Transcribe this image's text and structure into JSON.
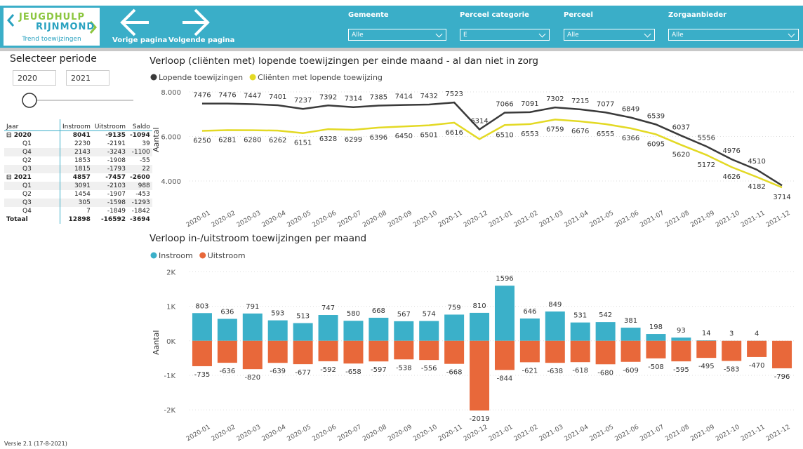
{
  "header": {
    "logo": [
      "JEUGDHULP",
      "RIJNMOND"
    ],
    "page_title": "Trend toewijzingen",
    "nav": [
      "Vorige pagina",
      "Volgende pagina"
    ],
    "filters": [
      {
        "label": "Gemeente",
        "value": "Alle"
      },
      {
        "label": "Perceel categorie",
        "value": "E"
      },
      {
        "label": "Perceel",
        "value": "Alle"
      },
      {
        "label": "Zorgaanbieder",
        "value": "Alle"
      }
    ]
  },
  "period": {
    "title": "Selecteer periode",
    "from": "2020",
    "to": "2021"
  },
  "table": {
    "columns": [
      "Jaar",
      "Instroom",
      "Uitstroom",
      "Saldo"
    ],
    "rows": [
      [
        "2020",
        8041,
        -9135,
        -1094
      ],
      [
        "Q1",
        2230,
        -2191,
        39
      ],
      [
        "Q4",
        2143,
        -3243,
        -1100
      ],
      [
        "Q2",
        1853,
        -1908,
        -55
      ],
      [
        "Q3",
        1815,
        -1793,
        22
      ],
      [
        "2021",
        4857,
        -7457,
        -2600
      ],
      [
        "Q1",
        3091,
        -2103,
        988
      ],
      [
        "Q2",
        1454,
        -1907,
        -453
      ],
      [
        "Q3",
        305,
        -1598,
        -1293
      ],
      [
        "Q4",
        7,
        -1849,
        -1842
      ],
      [
        "Totaal",
        12898,
        -16592,
        -3694
      ]
    ]
  },
  "footer": "Versie 2.1 (17-8-2021)",
  "chart_data": [
    {
      "type": "line",
      "title": "Verloop (cliënten met) lopende toewijzingen per einde maand - al dan niet in zorg",
      "y_label": "Aantal",
      "categories": [
        "2020-01",
        "2020-02",
        "2020-03",
        "2020-04",
        "2020-05",
        "2020-06",
        "2020-07",
        "2020-08",
        "2020-09",
        "2020-10",
        "2020-11",
        "2020-12",
        "2021-01",
        "2021-02",
        "2021-03",
        "2021-04",
        "2021-05",
        "2021-06",
        "2021-07",
        "2021-08",
        "2021-09",
        "2021-10",
        "2021-11",
        "2021-12"
      ],
      "series": [
        {
          "name": "Lopende toewijzingen",
          "color": "#3a3a3a",
          "values": [
            7476,
            7476,
            7447,
            7401,
            7237,
            7392,
            7314,
            7385,
            7414,
            7432,
            7523,
            6314,
            7066,
            7091,
            7302,
            7215,
            7077,
            6849,
            6539,
            6037,
            5556,
            4976,
            4510,
            3800
          ],
          "value_labels": [
            "7476",
            "7476",
            "7447",
            "7401",
            "7237",
            "7392",
            "7314",
            "7385",
            "7414",
            "7432",
            "7523",
            "6314",
            "7066",
            "7091",
            "7302",
            "7215",
            "7077",
            "6849",
            "6539",
            "6037",
            "5556",
            "4976",
            "4510",
            null
          ]
        },
        {
          "name": "Cliënten met lopende toewijzing",
          "color": "#e3d924",
          "values": [
            6250,
            6281,
            6280,
            6262,
            6151,
            6328,
            6299,
            6396,
            6450,
            6501,
            6616,
            5880,
            6510,
            6553,
            6759,
            6676,
            6555,
            6366,
            6095,
            5620,
            5172,
            4626,
            4182,
            3714
          ],
          "value_labels": [
            "6250",
            "6281",
            "6280",
            "6262",
            "6151",
            "6328",
            "6299",
            "6396",
            "6450",
            "6501",
            "6616",
            null,
            "6510",
            "6553",
            "6759",
            "6676",
            "6555",
            "6366",
            "6095",
            "5620",
            "5172",
            "4626",
            "4182",
            "3714"
          ]
        }
      ],
      "ylim": [
        3500,
        8200
      ],
      "yticks": [
        {
          "value": 4000,
          "label": "4.000"
        },
        {
          "value": 6000,
          "label": "6.000"
        },
        {
          "value": 8000,
          "label": "8.000"
        }
      ],
      "grid": true
    },
    {
      "type": "bar",
      "title": "Verloop in-/uitstroom toewijzingen per maand",
      "y_label": "Aantal",
      "categories": [
        "2020-01",
        "2020-02",
        "2020-03",
        "2020-04",
        "2020-05",
        "2020-06",
        "2020-07",
        "2020-08",
        "2020-09",
        "2020-10",
        "2020-11",
        "2020-12",
        "2021-01",
        "2021-02",
        "2021-03",
        "2021-04",
        "2021-05",
        "2021-06",
        "2021-07",
        "2021-08",
        "2021-09",
        "2021-10",
        "2021-11",
        "2021-12"
      ],
      "series": [
        {
          "name": "Instroom",
          "color": "#3bb0c9",
          "values": [
            803,
            636,
            791,
            593,
            513,
            747,
            580,
            668,
            567,
            574,
            759,
            810,
            1596,
            646,
            849,
            531,
            542,
            381,
            198,
            93,
            14,
            3,
            4,
            0
          ],
          "value_labels": [
            "803",
            "636",
            "791",
            "593",
            "513",
            "747",
            "580",
            "668",
            "567",
            "574",
            "759",
            "810",
            "1596",
            "646",
            "849",
            "531",
            "542",
            "381",
            "198",
            "93",
            "14",
            "3",
            "4",
            null
          ]
        },
        {
          "name": "Uitstroom",
          "color": "#e8683a",
          "values": [
            -735,
            -636,
            -820,
            -639,
            -677,
            -592,
            -658,
            -597,
            -538,
            -556,
            -668,
            -2019,
            -844,
            -621,
            -638,
            -618,
            -680,
            -609,
            -508,
            -595,
            -495,
            -583,
            -470,
            -796
          ]
        }
      ],
      "ylim": [
        -2300,
        2200
      ],
      "yticks": [
        {
          "value": -2000,
          "label": "-2K"
        },
        {
          "value": -1000,
          "label": "-1K"
        },
        {
          "value": 0,
          "label": "0K"
        },
        {
          "value": 1000,
          "label": "1K"
        },
        {
          "value": 2000,
          "label": "2K"
        }
      ],
      "grid": true
    }
  ]
}
